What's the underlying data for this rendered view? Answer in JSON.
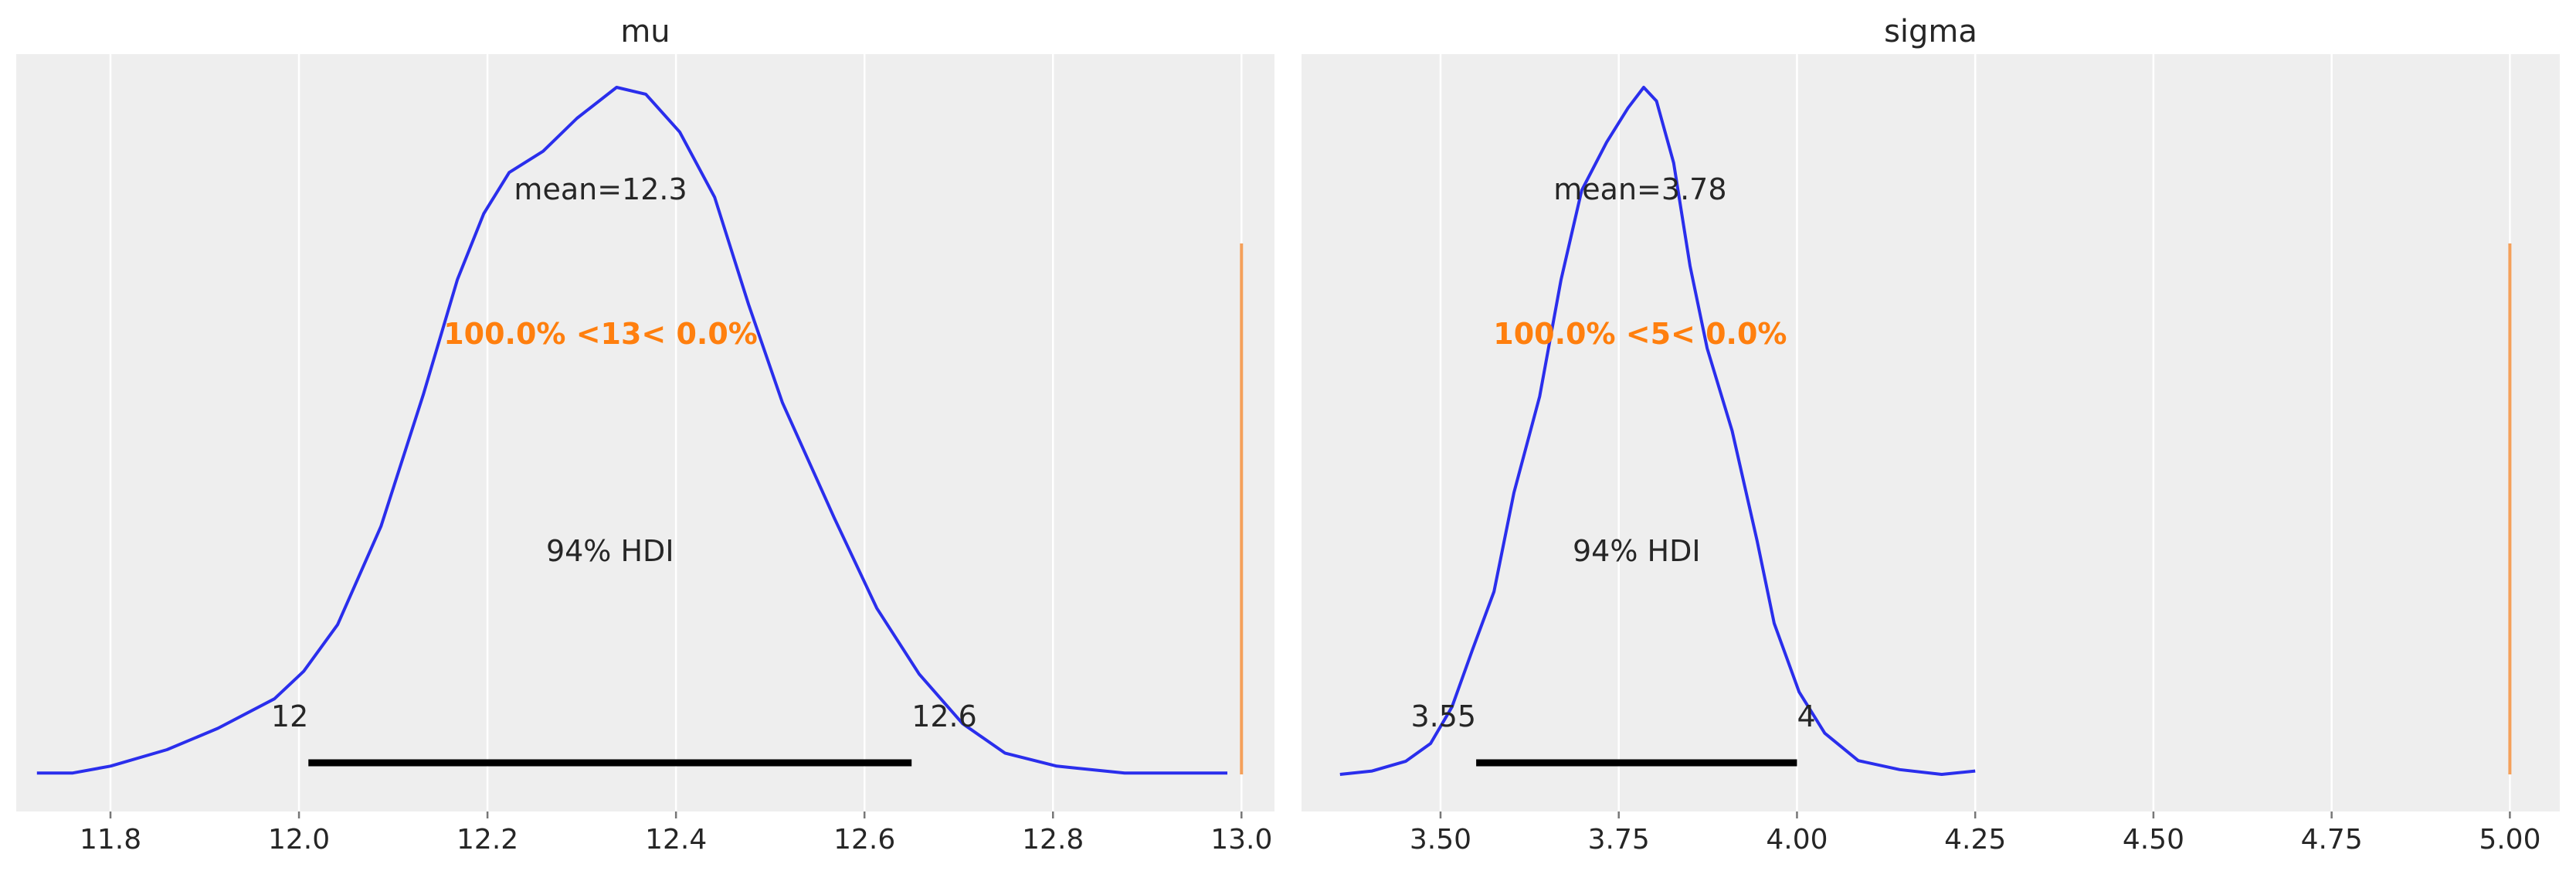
{
  "colors": {
    "background": "#eeeeee",
    "grid": "#ffffff",
    "kde": "#2a2eec",
    "hdi": "#000000",
    "ref_line": "#f5a05a",
    "ref_text": "#ff7f0e"
  },
  "chart_data": [
    {
      "type": "line",
      "title": "mu",
      "xlim": [
        11.7,
        13.035
      ],
      "xticks": [
        11.8,
        12.0,
        12.2,
        12.4,
        12.6,
        12.8,
        13.0
      ],
      "xtick_labels": [
        "11.8",
        "12.0",
        "12.2",
        "12.4",
        "12.6",
        "12.8",
        "13.0"
      ],
      "grid": true,
      "kde": {
        "x": [
          11.722,
          11.76,
          11.8,
          11.86,
          11.914,
          11.974,
          12.005,
          12.041,
          12.087,
          12.132,
          12.168,
          12.196,
          12.223,
          12.259,
          12.295,
          12.337,
          12.368,
          12.404,
          12.441,
          12.477,
          12.513,
          12.568,
          12.613,
          12.658,
          12.704,
          12.749,
          12.804,
          12.876,
          12.985
        ],
        "density": [
          0.002,
          0.002,
          0.012,
          0.036,
          0.067,
          0.11,
          0.15,
          0.218,
          0.361,
          0.553,
          0.72,
          0.816,
          0.876,
          0.907,
          0.955,
          1.0,
          0.99,
          0.935,
          0.84,
          0.684,
          0.541,
          0.373,
          0.242,
          0.146,
          0.074,
          0.031,
          0.012,
          0.002,
          0.002
        ]
      },
      "mean": 12.32,
      "mean_label": "mean=12.3",
      "hdi": [
        12.01,
        12.65
      ],
      "hdi_label": "94% HDI",
      "hdi_low_label": "12",
      "hdi_high_label": "12.6",
      "ref_val": 13.0,
      "ref_label": "100.0% <13< 0.0%"
    },
    {
      "type": "line",
      "title": "sigma",
      "xlim": [
        3.305,
        5.07
      ],
      "xticks": [
        3.5,
        3.75,
        4.0,
        4.25,
        4.5,
        4.75,
        5.0
      ],
      "xtick_labels": [
        "3.50",
        "3.75",
        "4.00",
        "4.25",
        "4.50",
        "4.75",
        "5.00"
      ],
      "grid": true,
      "kde": {
        "x": [
          3.359,
          3.404,
          3.451,
          3.486,
          3.516,
          3.545,
          3.575,
          3.603,
          3.639,
          3.669,
          3.698,
          3.733,
          3.763,
          3.785,
          3.803,
          3.827,
          3.85,
          3.874,
          3.909,
          3.944,
          3.968,
          4.003,
          4.039,
          4.086,
          4.144,
          4.203,
          4.25
        ],
        "density": [
          0,
          0.005,
          0.019,
          0.045,
          0.098,
          0.182,
          0.266,
          0.41,
          0.55,
          0.72,
          0.85,
          0.92,
          0.97,
          1.0,
          0.98,
          0.89,
          0.74,
          0.62,
          0.5,
          0.34,
          0.22,
          0.12,
          0.06,
          0.02,
          0.007,
          0,
          0.005
        ]
      },
      "mean": 3.78,
      "mean_label": "mean=3.78",
      "hdi": [
        3.55,
        4.0
      ],
      "hdi_label": "94% HDI",
      "hdi_low_label": "3.55",
      "hdi_high_label": "4",
      "ref_val": 5.0,
      "ref_label": "100.0% <5< 0.0%"
    }
  ]
}
